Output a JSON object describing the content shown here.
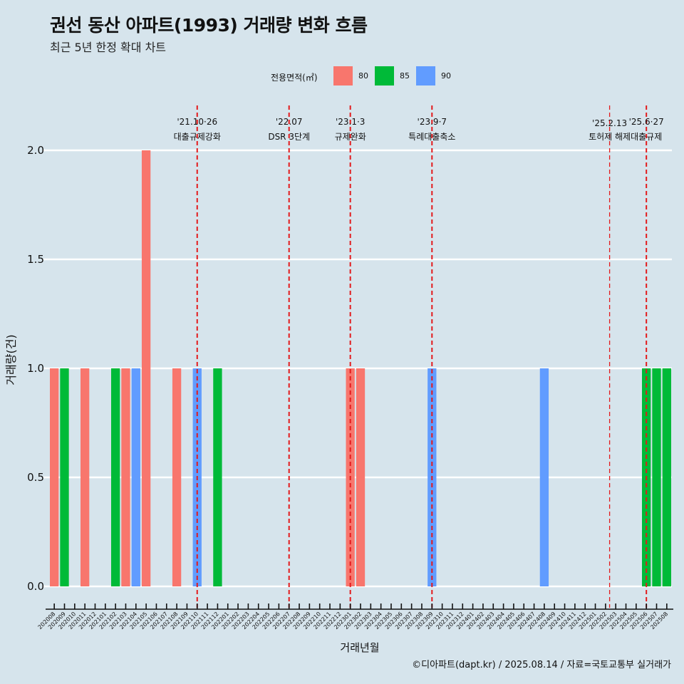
{
  "title": "권선 동산 아파트(1993) 거래량 변화 흐름",
  "subtitle": "최근 5년 한정 확대 차트",
  "caption": "©디아파트(dapt.kr) / 2025.08.14 / 자료=국토교통부 실거래가",
  "colors": {
    "background": "#d6e4ec",
    "s80": "#f8766d",
    "s85": "#00ba38",
    "s90": "#619cff",
    "event": "#e31a1c"
  },
  "chart_data": {
    "type": "bar",
    "title": "권선 동산 아파트(1993) 거래량 변화 흐름",
    "xlabel": "거래년월",
    "ylabel": "거래량(건)",
    "ylim": [
      0,
      2
    ],
    "yticks": [
      0.0,
      0.5,
      1.0,
      1.5,
      2.0
    ],
    "ytick_labels": [
      "0.0",
      "0.5",
      "1.0",
      "1.5",
      "2.0"
    ],
    "legend": {
      "title": "전용면적(㎡)",
      "position": "top",
      "entries": [
        "80",
        "85",
        "90"
      ]
    },
    "categories": [
      "202008",
      "202009",
      "202010",
      "202011",
      "202012",
      "202101",
      "202102",
      "202103",
      "202104",
      "202105",
      "202106",
      "202107",
      "202108",
      "202109",
      "202110",
      "202111",
      "202112",
      "202201",
      "202202",
      "202203",
      "202204",
      "202205",
      "202206",
      "202207",
      "202208",
      "202209",
      "202210",
      "202211",
      "202212",
      "202301",
      "202302",
      "202303",
      "202304",
      "202305",
      "202306",
      "202307",
      "202308",
      "202309",
      "202310",
      "202311",
      "202312",
      "202401",
      "202402",
      "202403",
      "202404",
      "202405",
      "202406",
      "202407",
      "202408",
      "202409",
      "202410",
      "202411",
      "202412",
      "202501",
      "202502",
      "202503",
      "202504",
      "202505",
      "202506",
      "202507",
      "202508"
    ],
    "series": [
      {
        "name": "80",
        "points": [
          {
            "month": "202008",
            "value": 1
          },
          {
            "month": "202011",
            "value": 1
          },
          {
            "month": "202103",
            "value": 1
          },
          {
            "month": "202105",
            "value": 2
          },
          {
            "month": "202108",
            "value": 1
          },
          {
            "month": "202301",
            "value": 1
          },
          {
            "month": "202302",
            "value": 1
          }
        ]
      },
      {
        "name": "85",
        "points": [
          {
            "month": "202009",
            "value": 1
          },
          {
            "month": "202102",
            "value": 1
          },
          {
            "month": "202112",
            "value": 1
          },
          {
            "month": "202506",
            "value": 1
          },
          {
            "month": "202507",
            "value": 1
          },
          {
            "month": "202508",
            "value": 1
          }
        ]
      },
      {
        "name": "90",
        "points": [
          {
            "month": "202104",
            "value": 1
          },
          {
            "month": "202110",
            "value": 1
          },
          {
            "month": "202309",
            "value": 1
          },
          {
            "month": "202408",
            "value": 1
          }
        ]
      }
    ],
    "events": [
      {
        "month": "202110",
        "offset": 0.0,
        "date": "'21.10·26",
        "label": "대출규제강화"
      },
      {
        "month": "202207",
        "offset": 0.0,
        "date": "'22.07",
        "label": "DSR 3단계"
      },
      {
        "month": "202301",
        "offset": 0.0,
        "date": "'23.1·3",
        "label": "규제완화"
      },
      {
        "month": "202309",
        "offset": 0.0,
        "date": "'23.9·7",
        "label": "특례대출축소"
      },
      {
        "month": "202502",
        "offset": 0.4,
        "date": "'25.2.13",
        "label": "토허제 해제"
      },
      {
        "month": "202506",
        "offset": 0.0,
        "date": "'25.6·27",
        "label": "대출규제"
      }
    ]
  }
}
